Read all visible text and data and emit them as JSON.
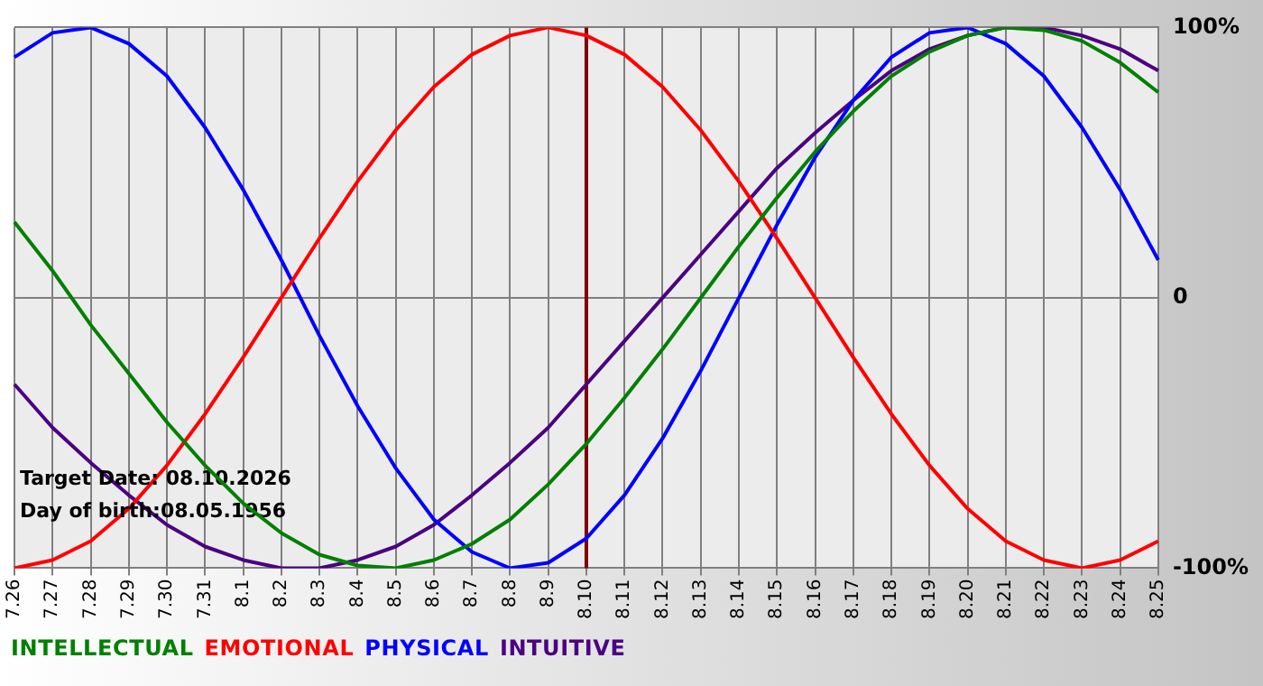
{
  "chart_data": {
    "type": "line",
    "categories": [
      "7.26",
      "7.27",
      "7.28",
      "7.29",
      "7.30",
      "7.31",
      "8.1",
      "8.2",
      "8.3",
      "8.4",
      "8.5",
      "8.6",
      "8.7",
      "8.8",
      "8.9",
      "8.10",
      "8.11",
      "8.12",
      "8.13",
      "8.14",
      "8.15",
      "8.16",
      "8.17",
      "8.18",
      "8.19",
      "8.20",
      "8.21",
      "8.22",
      "8.23",
      "8.24",
      "8.25"
    ],
    "series": [
      {
        "name": "INTELLECTUAL",
        "color": "#008000",
        "values": [
          28,
          10,
          -10,
          -28,
          -46,
          -62,
          -76,
          -87,
          -95,
          -99,
          -100,
          -97,
          -91,
          -82,
          -69,
          -54,
          -37,
          -19,
          0,
          19,
          37,
          54,
          69,
          82,
          91,
          97,
          100,
          99,
          95,
          87,
          76
        ]
      },
      {
        "name": "EMOTIONAL",
        "color": "#ff0000",
        "values": [
          -100,
          -97,
          -90,
          -78,
          -62,
          -43,
          -22,
          0,
          22,
          43,
          62,
          78,
          90,
          97,
          100,
          97,
          90,
          78,
          62,
          43,
          22,
          0,
          -22,
          -43,
          -62,
          -78,
          -90,
          -97,
          -100,
          -97,
          -90
        ]
      },
      {
        "name": "PHYSICAL",
        "color": "#0000ff",
        "values": [
          89,
          98,
          100,
          94,
          82,
          63,
          40,
          14,
          -14,
          -40,
          -63,
          -82,
          -94,
          -100,
          -98,
          -89,
          -73,
          -52,
          -27,
          0,
          27,
          52,
          73,
          89,
          98,
          100,
          94,
          82,
          63,
          40,
          14
        ]
      },
      {
        "name": "INTUITIVE",
        "color": "#4b0082",
        "values": [
          -32,
          -48,
          -61,
          -73,
          -84,
          -92,
          -97,
          -100,
          -100,
          -97,
          -92,
          -84,
          -73,
          -61,
          -48,
          -32,
          -16,
          0,
          16,
          32,
          48,
          61,
          73,
          84,
          92,
          97,
          100,
          100,
          97,
          92,
          84
        ]
      }
    ],
    "ylim": [
      -100,
      100
    ],
    "yticks": [
      {
        "value": -100,
        "label": "-100%"
      },
      0,
      {
        "value": 100,
        "label": "100%"
      }
    ],
    "grid": true,
    "legend": "bottom",
    "marker": "none",
    "line_style": "solid",
    "ref_lines": [
      {
        "axis": "x",
        "value": "8.10",
        "color": "#800000"
      }
    ],
    "annotations": [
      "Target Date: 08.10.2026",
      "Day of birth:08.05.1956"
    ]
  }
}
